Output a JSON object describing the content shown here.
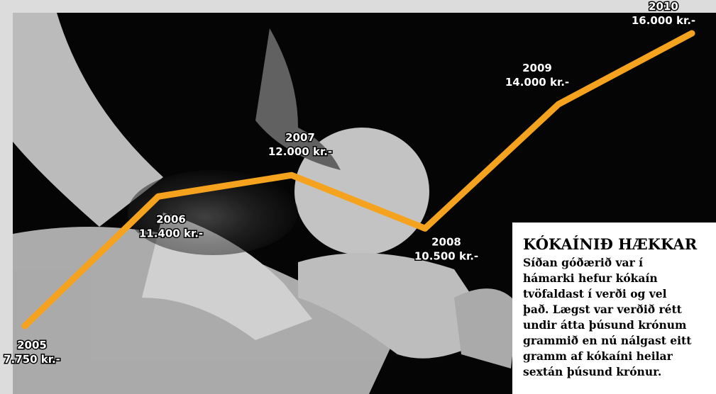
{
  "chart_data": {
    "type": "line",
    "categories": [
      "2005",
      "2006",
      "2007",
      "2008",
      "2009",
      "2010"
    ],
    "values": [
      7750,
      11400,
      12000,
      10500,
      14000,
      16000
    ],
    "value_labels": [
      "7.750 kr.-",
      "11.400 kr.-",
      "12.000 kr.-",
      "10.500 kr.-",
      "14.000 kr.-",
      "16.000 kr.-"
    ],
    "color": "#f5a31f",
    "note": {
      "title": "KÓKAÍNIÐ HÆKKAR",
      "lines": [
        "Síðan góðærið var í",
        "hámarki hefur kókaín",
        "tvöfaldast í verði og vel",
        "það. Lægst var verðið rétt",
        "undir átta þúsund krónum",
        "grammið en nú nálgast eitt",
        "gramm af kókaíni heilar",
        "sextán þúsund krónur."
      ]
    }
  }
}
